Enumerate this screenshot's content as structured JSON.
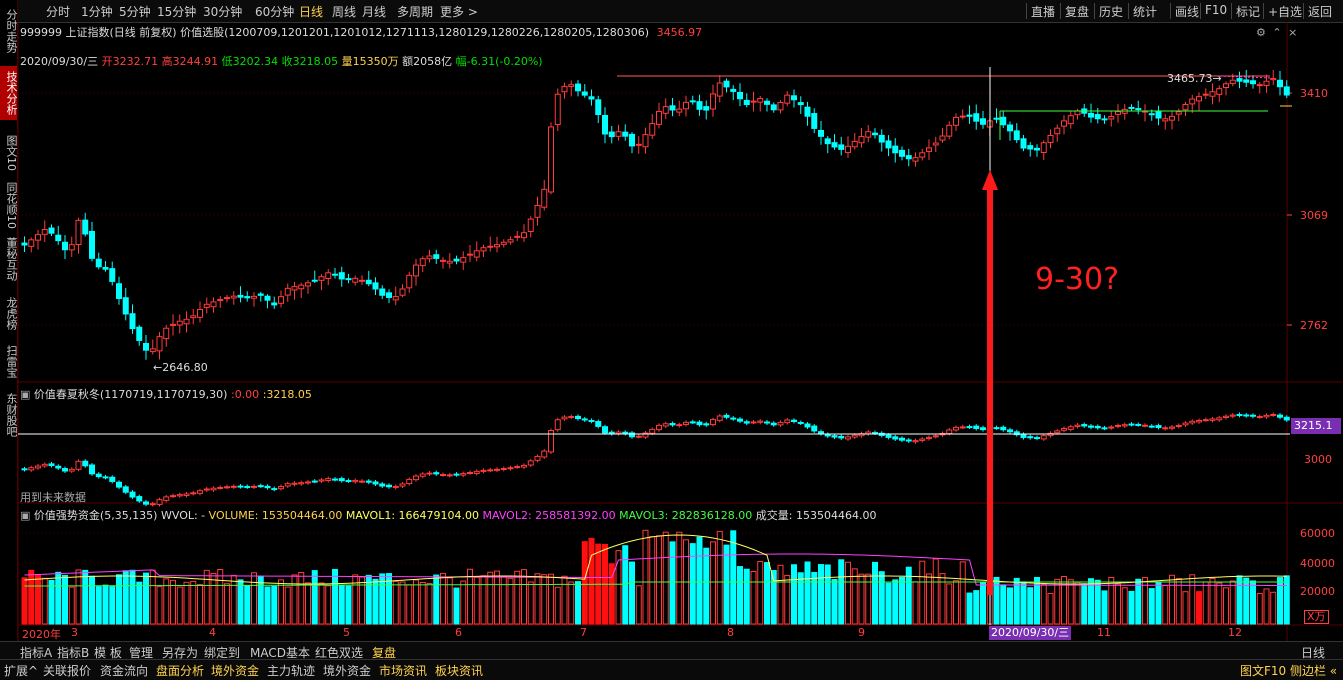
{
  "sidebar": {
    "items": [
      {
        "label": "分时走势",
        "active": false
      },
      {
        "label": "技术分析",
        "active": true
      },
      {
        "label": "图文10",
        "active": false
      },
      {
        "label": "同花顺10",
        "active": false
      },
      {
        "label": "董秘互动",
        "active": false
      },
      {
        "label": "龙虎榜",
        "active": false
      },
      {
        "label": "扫雷宝",
        "active": false
      },
      {
        "label": "东财股吧",
        "active": false
      }
    ]
  },
  "toolbar": {
    "periods": [
      "分时",
      "1分钟",
      "5分钟",
      "15分钟",
      "30分钟",
      "60分钟",
      "日线",
      "周线",
      "月线",
      "多周期",
      "更多 >"
    ],
    "selected_period": "日线",
    "right_buttons": [
      "直播",
      "复盘",
      "历史",
      "统计",
      "画线",
      "F10",
      "标记",
      "+自选",
      "返回"
    ]
  },
  "header": {
    "code": "999999",
    "name": "上证指数(日线 前复权)",
    "indicator": "价值选股(1200709,1201201,1201012,1271113,1280129,1280226,1280205,1280306)",
    "indicator_value": "3456.97",
    "date": "2020/09/30/三",
    "open_label": "开",
    "open": "3232.71",
    "high_label": "高",
    "high": "3244.91",
    "low_label": "低",
    "low": "3202.34",
    "close_label": "收",
    "close": "3218.05",
    "volume_label": "量",
    "volume": "15350万",
    "amount_label": "额",
    "amount": "2058亿",
    "change_label": "幅",
    "change": "-6.31(-0.20%)"
  },
  "main_chart": {
    "y_ticks": [
      "3410",
      "3069",
      "2762"
    ],
    "low_label": "2646.80",
    "high_label": "3465.73",
    "annotation": "9-30?"
  },
  "sub_chart": {
    "title": "价值春夏秋冬(1170719,1170719,30)",
    "value1": "0.00",
    "value2": "3218.05",
    "y_tick": "3000",
    "current_badge": "3215.1",
    "footnote": "用到未来数据"
  },
  "vol_chart": {
    "title": "价值强势资金(5,35,135)",
    "wvol": "WVOL: -",
    "volume": "VOLUME: 153504464.00",
    "mavol1": "MAVOL1: 166479104.00",
    "mavol2": "MAVOL2: 258581392.00",
    "mavol3": "MAVOL3: 282836128.00",
    "cjl": "成交量: 153504464.00",
    "y_ticks": [
      "60000",
      "40000",
      "20000"
    ],
    "unit": "X万"
  },
  "x_axis": {
    "labels": [
      "2020年",
      "3",
      "4",
      "5",
      "6",
      "7",
      "8",
      "9",
      "11",
      "12"
    ],
    "cursor_label": "2020/09/30/三"
  },
  "footer": {
    "tabs": [
      "指标A",
      "指标B",
      "模 板",
      "管理",
      "另存为",
      "绑定到",
      "MACD基本",
      "红色双选",
      "复盘"
    ],
    "right_tab": "日线",
    "bottom": [
      "扩展^",
      "关联报价",
      "资金流向",
      "盘面分析",
      "境外资金",
      "主力轨迹",
      "境外资金",
      "市场资讯",
      "板块资讯"
    ],
    "bottom_right": "图文F10 侧边栏 «"
  },
  "colors": {
    "up": "#ff3b3b",
    "down": "#00ffff",
    "accent": "#ffd24d",
    "arrow": "#ff1a1a"
  }
}
